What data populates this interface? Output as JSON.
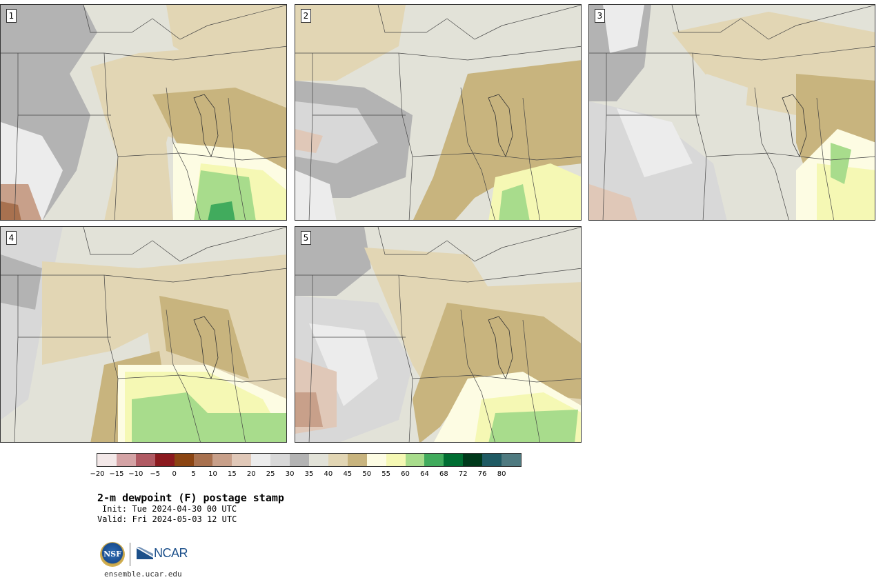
{
  "panels": [
    {
      "number": "1",
      "palette": "warm-south"
    },
    {
      "number": "2",
      "palette": "mid"
    },
    {
      "number": "3",
      "palette": "dry"
    },
    {
      "number": "4",
      "palette": "moist-south"
    },
    {
      "number": "5",
      "palette": "mid-south"
    }
  ],
  "colorbar": {
    "colors": [
      "#f3e8e8",
      "#d4a3a5",
      "#b05a63",
      "#8b1a1f",
      "#8b4513",
      "#a8714f",
      "#c8a08a",
      "#e0c8b8",
      "#ececec",
      "#d8d8d8",
      "#b3b3b3",
      "#e2e2d8",
      "#e2d6b4",
      "#c8b47e",
      "#fdfce3",
      "#f5f8b4",
      "#a8dc8c",
      "#41ab5d",
      "#006d32",
      "#00391b",
      "#1f5a63",
      "#4f7a80"
    ],
    "tick_labels": [
      "−20",
      "−15",
      "−10",
      "−5",
      "0",
      "5",
      "10",
      "15",
      "20",
      "25",
      "30",
      "35",
      "40",
      "45",
      "50",
      "55",
      "60",
      "64",
      "68",
      "72",
      "76",
      "80"
    ]
  },
  "title": "2-m dewpoint (F) postage stamp",
  "init": "Init: Tue 2024-04-30 00 UTC",
  "valid": "Valid: Fri 2024-05-03 12 UTC",
  "logos": {
    "nsf": "NSF",
    "ncar": "NCAR"
  },
  "footer_url": "ensemble.ucar.edu"
}
